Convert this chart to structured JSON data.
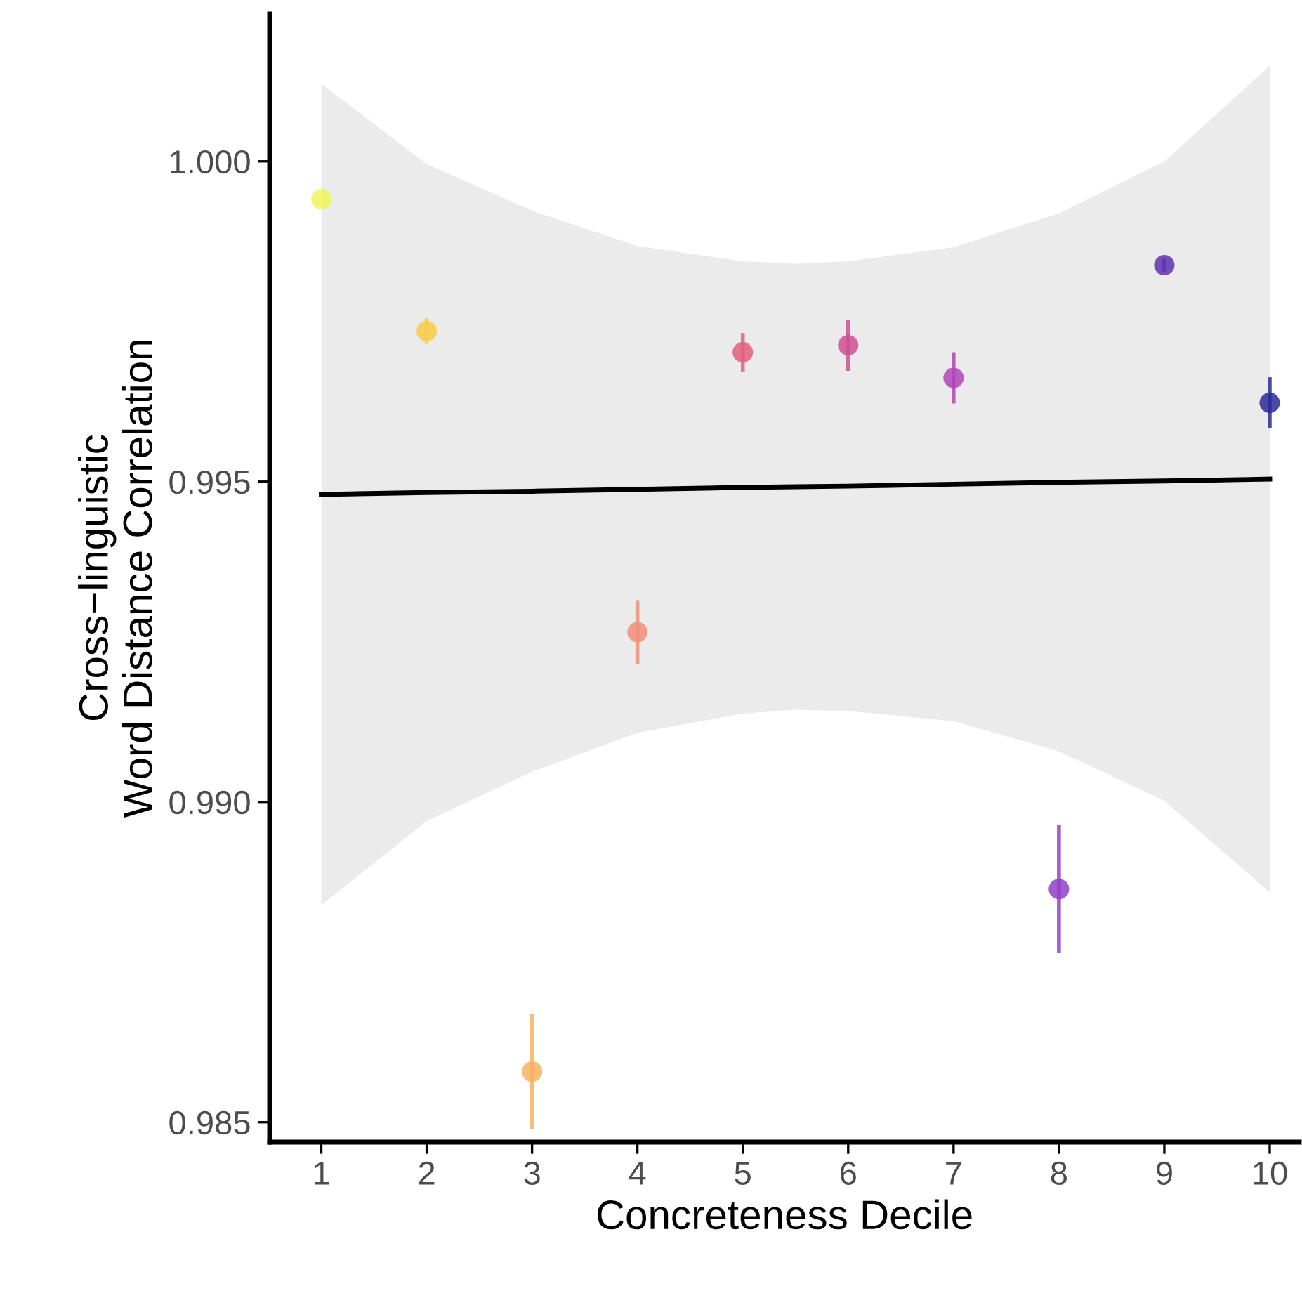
{
  "chart_data": {
    "type": "scatter",
    "xlabel": "Concreteness Decile",
    "ylabel": "Cross−linguistic\nWord Distance Correlation",
    "xlim": [
      0.51,
      10.28
    ],
    "ylim": [
      0.98469,
      1.0023
    ],
    "xticks": [
      1,
      2,
      3,
      4,
      5,
      6,
      7,
      8,
      9,
      10
    ],
    "yticks": [
      {
        "value": 0.985,
        "label": "0.985"
      },
      {
        "value": 0.99,
        "label": "0.990"
      },
      {
        "value": 0.995,
        "label": "0.995"
      },
      {
        "value": 1.0,
        "label": "1.000"
      }
    ],
    "grid": false,
    "legend": false,
    "series": [
      {
        "type": "line",
        "color": "#000000",
        "x": [
          1,
          2,
          3,
          4,
          5,
          5.5,
          6,
          7,
          8,
          9,
          10
        ],
        "values": [
          0.9948,
          0.99483,
          0.99485,
          0.99488,
          0.99491,
          0.99492,
          0.99493,
          0.99496,
          0.99499,
          0.99501,
          0.99504
        ],
        "lower": [
          0.98839,
          0.9897,
          0.99047,
          0.99108,
          0.99138,
          0.99144,
          0.99142,
          0.99126,
          0.99079,
          0.99002,
          0.98859
        ],
        "upper": [
          1.00121,
          0.99996,
          0.99923,
          0.99868,
          0.99844,
          0.9984,
          0.99844,
          0.99866,
          0.99919,
          1.0,
          1.00149
        ]
      },
      {
        "marker": "circle",
        "x": [
          1,
          2,
          3,
          4,
          5,
          6,
          7,
          8,
          9,
          10
        ],
        "values": [
          0.99941,
          0.99735,
          0.98579,
          0.99265,
          0.99702,
          0.99713,
          0.99662,
          0.98864,
          0.99838,
          0.99623
        ],
        "errors": [
          null,
          0.0002,
          0.0009,
          0.0005,
          0.0003,
          0.0004,
          0.0004,
          0.001,
          0.0001,
          0.0004
        ],
        "colors": [
          "#eef65a",
          "#f8cc45",
          "#fbb060",
          "#f09078",
          "#e0607a",
          "#cc5090",
          "#b045b8",
          "#9040c8",
          "#6030b0",
          "#2d2a9a"
        ]
      }
    ]
  }
}
